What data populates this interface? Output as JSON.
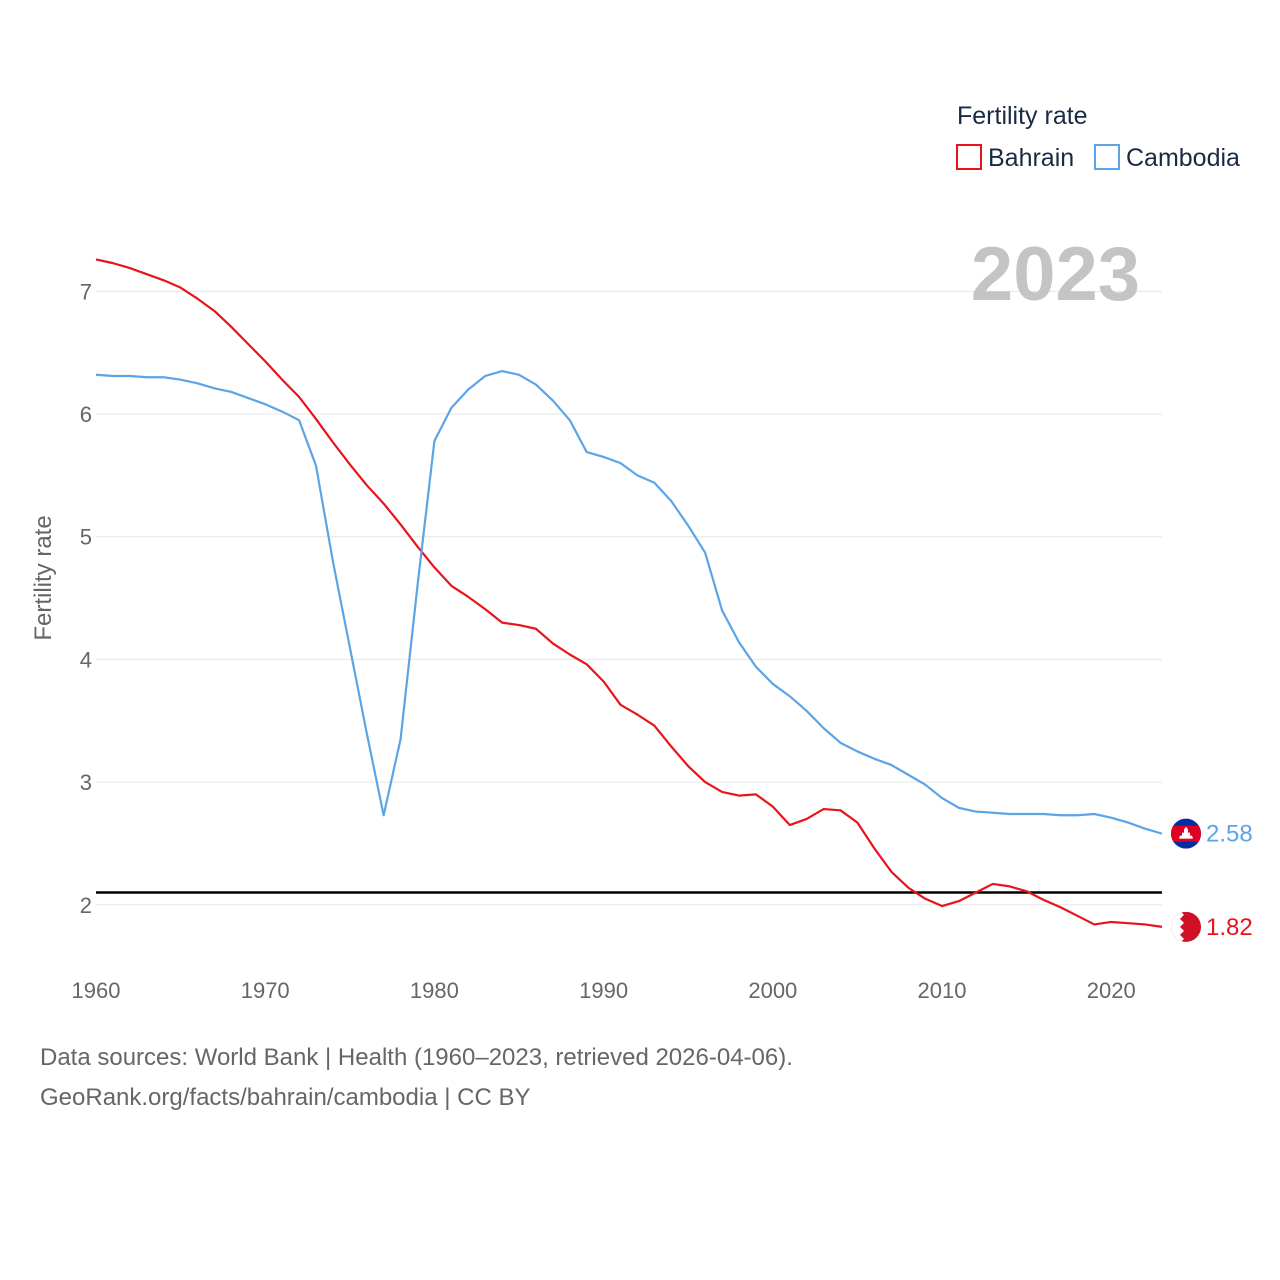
{
  "chart_data": {
    "type": "line",
    "title": "",
    "year_label": "2023",
    "xlabel": "",
    "ylabel": "Fertility rate",
    "xlim": [
      1960,
      2023
    ],
    "ylim": [
      1.55,
      7.5
    ],
    "x_ticks": [
      1960,
      1970,
      1980,
      1990,
      2000,
      2010,
      2020
    ],
    "y_ticks": [
      2,
      3,
      4,
      5,
      6,
      7
    ],
    "reference_line": {
      "value": 2.1,
      "color": "#000000"
    },
    "legend": {
      "title": "Fertility rate",
      "placement": "top-right"
    },
    "series": [
      {
        "name": "Bahrain",
        "color": "#e8141c",
        "end_label": "1.82",
        "x": [
          1960,
          1961,
          1962,
          1963,
          1964,
          1965,
          1966,
          1967,
          1968,
          1969,
          1970,
          1971,
          1972,
          1973,
          1974,
          1975,
          1976,
          1977,
          1978,
          1979,
          1980,
          1981,
          1982,
          1983,
          1984,
          1985,
          1986,
          1987,
          1988,
          1989,
          1990,
          1991,
          1992,
          1993,
          1994,
          1995,
          1996,
          1997,
          1998,
          1999,
          2000,
          2001,
          2002,
          2003,
          2004,
          2005,
          2006,
          2007,
          2008,
          2009,
          2010,
          2011,
          2012,
          2013,
          2014,
          2015,
          2016,
          2017,
          2018,
          2019,
          2020,
          2021,
          2022,
          2023
        ],
        "values": [
          7.26,
          7.23,
          7.19,
          7.14,
          7.09,
          7.03,
          6.94,
          6.84,
          6.71,
          6.57,
          6.43,
          6.28,
          6.14,
          5.96,
          5.77,
          5.59,
          5.42,
          5.27,
          5.1,
          4.92,
          4.75,
          4.6,
          4.51,
          4.41,
          4.3,
          4.28,
          4.25,
          4.13,
          4.04,
          3.96,
          3.82,
          3.63,
          3.55,
          3.46,
          3.29,
          3.13,
          3.0,
          2.92,
          2.89,
          2.9,
          2.8,
          2.65,
          2.7,
          2.78,
          2.77,
          2.67,
          2.46,
          2.27,
          2.14,
          2.05,
          1.99,
          2.03,
          2.1,
          2.17,
          2.15,
          2.11,
          2.04,
          1.98,
          1.91,
          1.84,
          1.86,
          1.85,
          1.84,
          1.82
        ]
      },
      {
        "name": "Cambodia",
        "color": "#5ba4e6",
        "end_label": "2.58",
        "x": [
          1960,
          1961,
          1962,
          1963,
          1964,
          1965,
          1966,
          1967,
          1968,
          1969,
          1970,
          1971,
          1972,
          1973,
          1974,
          1975,
          1976,
          1977,
          1978,
          1979,
          1980,
          1981,
          1982,
          1983,
          1984,
          1985,
          1986,
          1987,
          1988,
          1989,
          1990,
          1991,
          1992,
          1993,
          1994,
          1995,
          1996,
          1997,
          1998,
          1999,
          2000,
          2001,
          2002,
          2003,
          2004,
          2005,
          2006,
          2007,
          2008,
          2009,
          2010,
          2011,
          2012,
          2013,
          2014,
          2015,
          2016,
          2017,
          2018,
          2019,
          2020,
          2021,
          2022,
          2023
        ],
        "values": [
          6.32,
          6.31,
          6.31,
          6.3,
          6.3,
          6.28,
          6.25,
          6.21,
          6.18,
          6.13,
          6.08,
          6.02,
          5.95,
          5.58,
          4.8,
          4.1,
          3.4,
          2.73,
          3.35,
          4.6,
          5.78,
          6.05,
          6.2,
          6.31,
          6.35,
          6.32,
          6.24,
          6.11,
          5.95,
          5.69,
          5.65,
          5.6,
          5.5,
          5.44,
          5.29,
          5.09,
          4.87,
          4.4,
          4.14,
          3.94,
          3.8,
          3.7,
          3.58,
          3.44,
          3.32,
          3.25,
          3.19,
          3.14,
          3.06,
          2.98,
          2.87,
          2.79,
          2.76,
          2.75,
          2.74,
          2.74,
          2.74,
          2.73,
          2.73,
          2.74,
          2.71,
          2.67,
          2.62,
          2.58
        ]
      }
    ]
  },
  "footer": {
    "line1": "Data sources: World Bank | Health (1960–2023, retrieved 2026-04-06).",
    "line2": "GeoRank.org/facts/bahrain/cambodia | CC BY"
  }
}
